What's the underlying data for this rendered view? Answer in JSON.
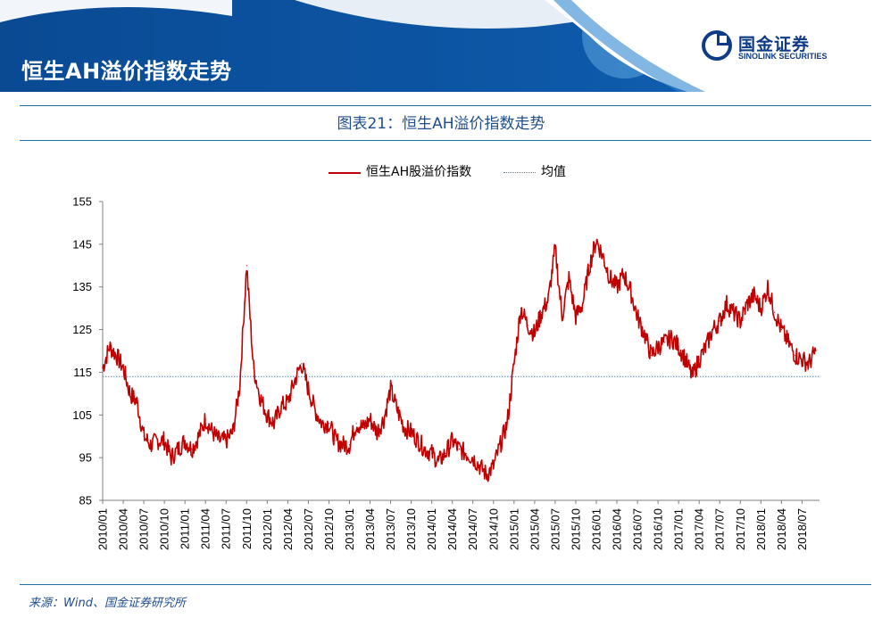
{
  "header": {
    "title": "恒生AH溢价指数走势",
    "logo_cn": "国金证券",
    "logo_en": "SINOLINK SECURITIES"
  },
  "caption": "图表21：恒生AH溢价指数走势",
  "source": "来源：Wind、国金证券研究所",
  "colors": {
    "series": "#c00000",
    "mean": "#4a86c5",
    "banner": "#0c4f97",
    "rule": "#1f6ea5"
  },
  "chart_data": {
    "type": "line",
    "title": "",
    "xlabel": "",
    "ylabel": "",
    "ylim": [
      85,
      155
    ],
    "yticks": [
      "155",
      "145",
      "135",
      "125",
      "115",
      "105",
      "95",
      "85"
    ],
    "xticks": [
      "2010/01",
      "2010/04",
      "2010/07",
      "2010/10",
      "2011/01",
      "2011/04",
      "2011/07",
      "2011/10",
      "2012/01",
      "2012/04",
      "2012/07",
      "2012/10",
      "2013/01",
      "2013/04",
      "2013/07",
      "2013/10",
      "2014/01",
      "2014/04",
      "2014/07",
      "2014/10",
      "2015/01",
      "2015/04",
      "2015/07",
      "2015/10",
      "2016/01",
      "2016/04",
      "2016/07",
      "2016/10",
      "2017/01",
      "2017/04",
      "2017/07",
      "2017/10",
      "2018/01",
      "2018/04",
      "2018/07"
    ],
    "legend": [
      "恒生AH股溢价指数",
      "均值"
    ],
    "legend_position": "top-center",
    "grid": false,
    "mean_value": 114,
    "series": [
      {
        "name": "恒生AH股溢价指数",
        "x": [
          "2010/01",
          "2010/02",
          "2010/03",
          "2010/04",
          "2010/05",
          "2010/06",
          "2010/07",
          "2010/08",
          "2010/09",
          "2010/10",
          "2010/11",
          "2010/12",
          "2011/01",
          "2011/02",
          "2011/03",
          "2011/04",
          "2011/05",
          "2011/06",
          "2011/07",
          "2011/08",
          "2011/09",
          "2011/10",
          "2011/11",
          "2011/12",
          "2012/01",
          "2012/02",
          "2012/03",
          "2012/04",
          "2012/05",
          "2012/06",
          "2012/07",
          "2012/08",
          "2012/09",
          "2012/10",
          "2012/11",
          "2012/12",
          "2013/01",
          "2013/02",
          "2013/03",
          "2013/04",
          "2013/05",
          "2013/06",
          "2013/07",
          "2013/08",
          "2013/09",
          "2013/10",
          "2013/11",
          "2013/12",
          "2014/01",
          "2014/02",
          "2014/03",
          "2014/04",
          "2014/05",
          "2014/06",
          "2014/07",
          "2014/08",
          "2014/09",
          "2014/10",
          "2014/11",
          "2014/12",
          "2015/01",
          "2015/02",
          "2015/03",
          "2015/04",
          "2015/05",
          "2015/06",
          "2015/07",
          "2015/08",
          "2015/09",
          "2015/10",
          "2015/11",
          "2015/12",
          "2016/01",
          "2016/02",
          "2016/03",
          "2016/04",
          "2016/05",
          "2016/06",
          "2016/07",
          "2016/08",
          "2016/09",
          "2016/10",
          "2016/11",
          "2016/12",
          "2017/01",
          "2017/02",
          "2017/03",
          "2017/04",
          "2017/05",
          "2017/06",
          "2017/07",
          "2017/08",
          "2017/09",
          "2017/10",
          "2017/11",
          "2017/12",
          "2018/01",
          "2018/02",
          "2018/03",
          "2018/04",
          "2018/05",
          "2018/06",
          "2018/07",
          "2018/08",
          "2018/09"
        ],
        "values": [
          116,
          121,
          119,
          116,
          110,
          108,
          100,
          98,
          99,
          99,
          95,
          97,
          99,
          97,
          100,
          104,
          101,
          99,
          99,
          101,
          112,
          140,
          116,
          109,
          105,
          103,
          107,
          108,
          113,
          117,
          111,
          106,
          103,
          103,
          99,
          98,
          98,
          103,
          102,
          104,
          101,
          104,
          111,
          106,
          102,
          101,
          99,
          97,
          96,
          94,
          96,
          99,
          97,
          96,
          95,
          93,
          91,
          93,
          98,
          103,
          117,
          130,
          126,
          124,
          129,
          132,
          144,
          128,
          137,
          128,
          131,
          140,
          146,
          142,
          137,
          135,
          138,
          134,
          128,
          124,
          119,
          121,
          122,
          123,
          121,
          118,
          114,
          118,
          121,
          125,
          127,
          131,
          129,
          127,
          131,
          133,
          130,
          135,
          129,
          125,
          122,
          119,
          118,
          117,
          120
        ]
      }
    ]
  }
}
